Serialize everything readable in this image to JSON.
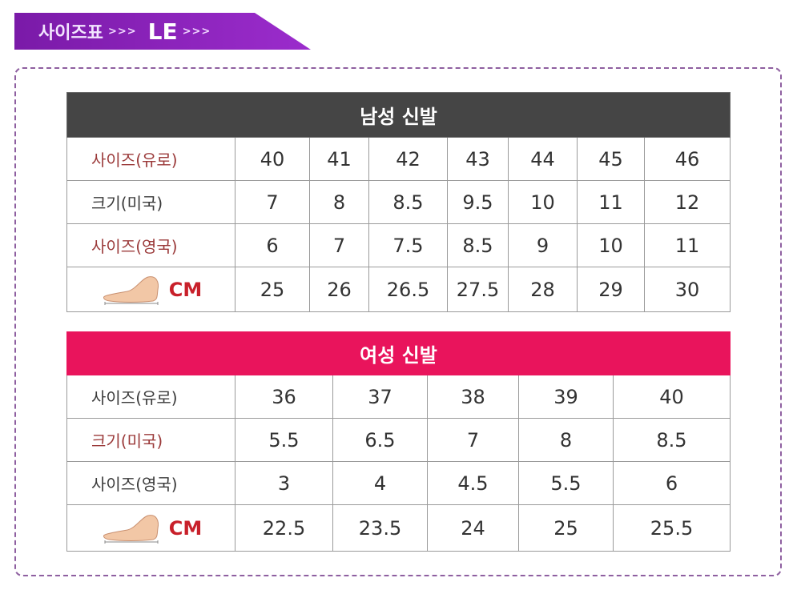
{
  "banner": {
    "title": "사이즈표",
    "arrows1": ">>>",
    "word": "LE",
    "arrows2": ">>>"
  },
  "colors": {
    "banner": "#8a1eb8",
    "men_header": "#454545",
    "women_header": "#e9145c",
    "frame": "#8e5fa0"
  },
  "men": {
    "title": "남성 신발",
    "rows": [
      {
        "label": "사이즈(유로)",
        "values": [
          "40",
          "41",
          "42",
          "43",
          "44",
          "45",
          "46"
        ]
      },
      {
        "label": "크기(미국)",
        "values": [
          "7",
          "8",
          "8.5",
          "9.5",
          "10",
          "11",
          "12"
        ]
      },
      {
        "label": "사이즈(영국)",
        "values": [
          "6",
          "7",
          "7.5",
          "8.5",
          "9",
          "10",
          "11"
        ]
      }
    ],
    "cm_label": "CM",
    "cm_values": [
      "25",
      "26",
      "26.5",
      "27.5",
      "28",
      "29",
      "30"
    ]
  },
  "women": {
    "title": "여성 신발",
    "rows": [
      {
        "label": "사이즈(유로)",
        "values": [
          "36",
          "37",
          "38",
          "39",
          "40"
        ]
      },
      {
        "label": "크기(미국)",
        "values": [
          "5.5",
          "6.5",
          "7",
          "8",
          "8.5"
        ]
      },
      {
        "label": "사이즈(영국)",
        "values": [
          "3",
          "4",
          "4.5",
          "5.5",
          "6"
        ]
      }
    ],
    "cm_label": "CM",
    "cm_values": [
      "22.5",
      "23.5",
      "24",
      "25",
      "25.5"
    ]
  }
}
